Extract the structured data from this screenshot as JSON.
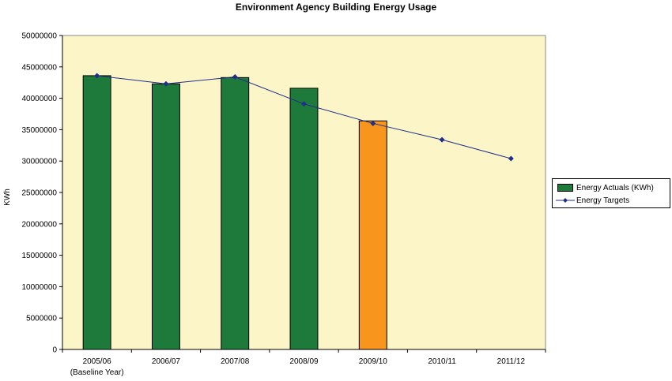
{
  "chart_data": {
    "type": "bar",
    "title": "Environment Agency Building Energy Usage",
    "ylabel": "KWh",
    "xlabel": "",
    "ylim": [
      0,
      50000000
    ],
    "yticks": [
      "0",
      "5000000",
      "10000000",
      "15000000",
      "20000000",
      "25000000",
      "30000000",
      "35000000",
      "40000000",
      "45000000",
      "50000000"
    ],
    "categories": [
      "2005/06",
      "2006/07",
      "2007/08",
      "2008/09",
      "2009/10",
      "2010/11",
      "2011/12"
    ],
    "category_sublabels": [
      "(Baseline Year)",
      "",
      "",
      "",
      "",
      "",
      ""
    ],
    "series": [
      {
        "name": "Energy Actuals (KWh)",
        "type": "bar",
        "values": [
          43600000,
          42300000,
          43300000,
          41600000,
          36400000,
          null,
          null
        ],
        "bar_colors": [
          "#1e7a3a",
          "#1e7a3a",
          "#1e7a3a",
          "#1e7a3a",
          "#f7951d",
          null,
          null
        ]
      },
      {
        "name": "Energy Targets",
        "type": "line",
        "color": "#1f2f8a",
        "values": [
          43600000,
          42300000,
          43400000,
          39100000,
          36000000,
          33400000,
          30400000
        ]
      }
    ],
    "grid": false,
    "legend": "right",
    "plot_background": "#fbf5c8"
  }
}
